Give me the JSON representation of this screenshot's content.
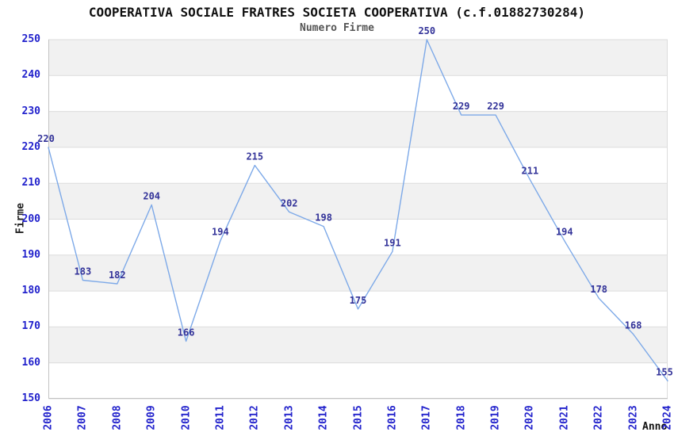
{
  "chart": {
    "title": "COOPERATIVA SOCIALE FRATRES SOCIETA COOPERATIVA (c.f.01882730284)",
    "subtitle": "Numero Firme",
    "ylabel": "Firme",
    "xlabel": "Anno"
  },
  "chart_data": {
    "type": "line",
    "title": "COOPERATIVA SOCIALE FRATRES SOCIETA COOPERATIVA (c.f.01882730284)",
    "subtitle": "Numero Firme",
    "xlabel": "Anno",
    "ylabel": "Firme",
    "x": [
      "2006",
      "2007",
      "2008",
      "2009",
      "2010",
      "2011",
      "2012",
      "2013",
      "2014",
      "2015",
      "2016",
      "2017",
      "2018",
      "2019",
      "2020",
      "2021",
      "2022",
      "2023",
      "2024"
    ],
    "values": [
      220,
      183,
      182,
      204,
      166,
      194,
      215,
      202,
      198,
      175,
      191,
      250,
      229,
      229,
      211,
      194,
      178,
      168,
      155
    ],
    "ylim": [
      150,
      250
    ],
    "ytick_step": 10,
    "yticks": [
      150,
      160,
      170,
      180,
      190,
      200,
      210,
      220,
      230,
      240,
      250
    ],
    "grid": true,
    "legend": "none",
    "data_labels": true,
    "colors": {
      "line": "#7da9e8",
      "point_label": "#333399",
      "tick_label": "#2222cc",
      "band_dark": "#f1f1f1",
      "band_light": "#ffffff",
      "gridline": "#dcdcdc",
      "axis": "#c2c2c2",
      "title": "#111111",
      "subtitle": "#555555"
    }
  }
}
